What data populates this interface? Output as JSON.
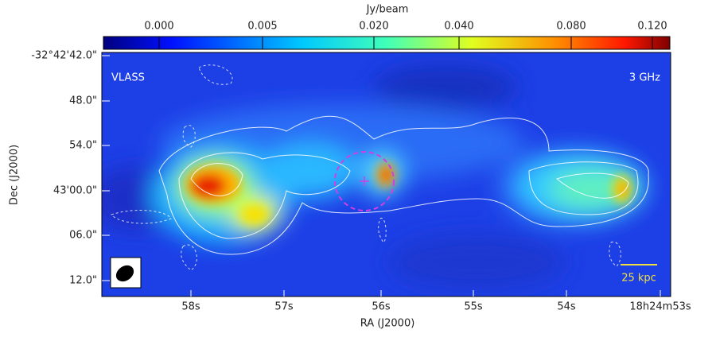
{
  "figure": {
    "colorbar": {
      "label": "Jy/beam",
      "ticks": [
        "0.000",
        "0.005",
        "0.020",
        "0.040",
        "0.080",
        "0.120"
      ]
    },
    "x_axis": {
      "label": "RA (J2000)",
      "ticks": [
        "58s",
        "57s",
        "56s",
        "55s",
        "54s",
        "18h24m53s"
      ]
    },
    "y_axis": {
      "label": "Dec (J2000)",
      "ticks": [
        "-32°42'42.0\"",
        "48.0\"",
        "54.0\"",
        "43'00.0\"",
        "06.0\"",
        "12.0\""
      ]
    },
    "annotations": {
      "survey": "VLASS",
      "frequency": "3 GHz",
      "scale_bar": "25 kpc"
    }
  }
}
